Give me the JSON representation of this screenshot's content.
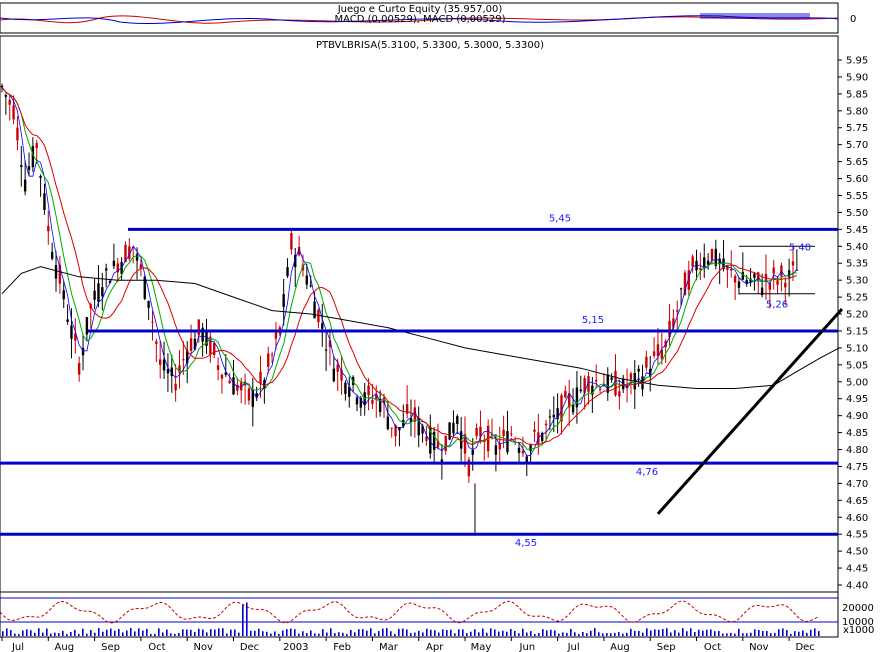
{
  "chart_data": {
    "type": "candlestick",
    "colors": {
      "level_lines": "#0000cc",
      "trendline": "#000000",
      "ma_short": "#0000ff",
      "ma_green": "#00aa00",
      "ma_red": "#dd0000",
      "ma_long": "#000000",
      "candle": "#cc0000",
      "candle_dark": "#000000",
      "oscillator": "#cc0000",
      "volume": "#0000cc",
      "grid": "#000000"
    },
    "top_panel": {
      "title_line1": "Juego e Curto Equity (35.957,00)",
      "title_line2": "MACD (0,00529), MACD (0,00529)",
      "zero_label": "0"
    },
    "main_panel": {
      "title": "PTBVLBRISA(5.3100, 5.3300, 5.3000, 5.3300)",
      "ylim": [
        4.37,
        5.99
      ],
      "ytick_labels": [
        "5.95",
        "5.90",
        "5.85",
        "5.80",
        "5.75",
        "5.70",
        "5.65",
        "5.60",
        "5.55",
        "5.50",
        "5.45",
        "5.40",
        "5.35",
        "5.30",
        "5.25",
        "5.20",
        "5.15",
        "5.10",
        "5.05",
        "5.00",
        "4.95",
        "4.90",
        "4.85",
        "4.80",
        "4.75",
        "4.70",
        "4.65",
        "4.60",
        "4.55",
        "4.50",
        "4.45",
        "4.40"
      ],
      "levels": [
        {
          "value": 5.45,
          "label": "5,45"
        },
        {
          "value": 5.15,
          "label": "5,15"
        },
        {
          "value": 4.76,
          "label": "4,76"
        },
        {
          "value": 4.55,
          "label": "4,55"
        }
      ],
      "resistance_label": "5,40",
      "support_label": "5,26",
      "trendline": {
        "from": [
          170,
          4.61
        ],
        "to": [
          200,
          5.2
        ]
      },
      "ma_long": [
        [
          0,
          5.26
        ],
        [
          5,
          5.32
        ],
        [
          10,
          5.34
        ],
        [
          20,
          5.31
        ],
        [
          30,
          5.3
        ],
        [
          40,
          5.3
        ],
        [
          50,
          5.29
        ],
        [
          60,
          5.25
        ],
        [
          70,
          5.21
        ],
        [
          80,
          5.2
        ],
        [
          90,
          5.18
        ],
        [
          100,
          5.16
        ],
        [
          110,
          5.13
        ],
        [
          120,
          5.1
        ],
        [
          130,
          5.08
        ],
        [
          140,
          5.06
        ],
        [
          150,
          5.04
        ],
        [
          160,
          5.01
        ],
        [
          170,
          4.99
        ],
        [
          180,
          4.98
        ],
        [
          190,
          4.98
        ],
        [
          200,
          4.99
        ],
        [
          206,
          5.03
        ],
        [
          212,
          5.07
        ],
        [
          217,
          5.1
        ]
      ],
      "ohlc_path": [
        [
          0,
          5.87
        ],
        [
          3,
          5.8
        ],
        [
          6,
          5.6
        ],
        [
          9,
          5.7
        ],
        [
          12,
          5.45
        ],
        [
          16,
          5.25
        ],
        [
          20,
          5.05
        ],
        [
          23,
          5.22
        ],
        [
          26,
          5.3
        ],
        [
          30,
          5.35
        ],
        [
          34,
          5.4
        ],
        [
          38,
          5.25
        ],
        [
          41,
          5.05
        ],
        [
          45,
          5.0
        ],
        [
          48,
          5.1
        ],
        [
          52,
          5.15
        ],
        [
          56,
          5.05
        ],
        [
          60,
          5.0
        ],
        [
          64,
          4.95
        ],
        [
          68,
          5.0
        ],
        [
          72,
          5.15
        ],
        [
          75,
          5.4
        ],
        [
          78,
          5.35
        ],
        [
          82,
          5.2
        ],
        [
          86,
          5.05
        ],
        [
          90,
          5.0
        ],
        [
          94,
          4.95
        ],
        [
          98,
          4.95
        ],
        [
          102,
          4.85
        ],
        [
          106,
          4.9
        ],
        [
          110,
          4.85
        ],
        [
          114,
          4.8
        ],
        [
          118,
          4.9
        ],
        [
          121,
          4.75
        ],
        [
          124,
          4.85
        ],
        [
          128,
          4.8
        ],
        [
          132,
          4.85
        ],
        [
          136,
          4.8
        ],
        [
          140,
          4.85
        ],
        [
          144,
          4.9
        ],
        [
          148,
          4.95
        ],
        [
          152,
          5.0
        ],
        [
          156,
          5.0
        ],
        [
          160,
          4.98
        ],
        [
          164,
          5.0
        ],
        [
          168,
          5.05
        ],
        [
          172,
          5.1
        ],
        [
          176,
          5.25
        ],
        [
          180,
          5.35
        ],
        [
          184,
          5.38
        ],
        [
          188,
          5.32
        ],
        [
          192,
          5.3
        ],
        [
          196,
          5.29
        ],
        [
          200,
          5.3
        ],
        [
          204,
          5.31
        ],
        [
          206,
          5.33
        ]
      ],
      "last_close": 5.33
    },
    "oscillator_panel": {
      "ytick_labels": [
        "20000",
        "10000"
      ],
      "unit": "x1000"
    },
    "x_axis": {
      "labels": [
        "Jul",
        "Aug",
        "Sep",
        "Oct",
        "Nov",
        "Dec",
        "2003",
        "Feb",
        "Mar",
        "Apr",
        "May",
        "Jun",
        "Jul",
        "Aug",
        "Sep",
        "Oct",
        "Nov",
        "Dec"
      ],
      "positions": [
        0,
        12,
        24,
        36,
        48,
        60,
        72,
        84,
        96,
        108,
        120,
        132,
        144,
        156,
        168,
        180,
        192,
        204
      ]
    }
  }
}
